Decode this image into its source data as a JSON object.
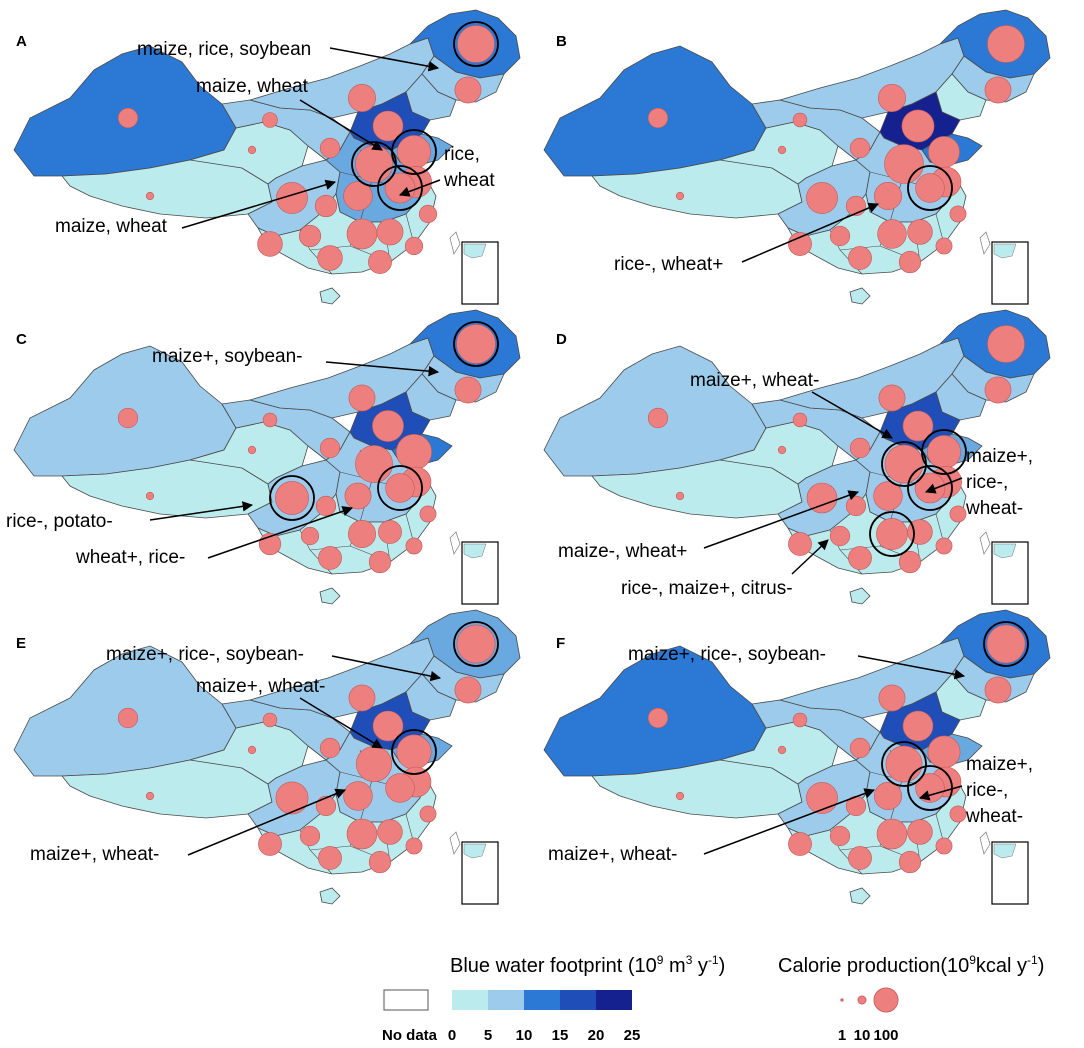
{
  "colors": {
    "footprint_classes": [
      "#bcebee",
      "#9ccbeb",
      "#6aa8e0",
      "#2b78d5",
      "#1f4eb8",
      "#14218f"
    ],
    "province_stroke": "#4a4a4a",
    "bubble_fill": "#ee7f7f",
    "bubble_stroke": "#c05a5a",
    "circle_stroke": "#000000",
    "arrow": "#000000"
  },
  "panels": [
    {
      "letter": "A",
      "annotations": [
        "maize, rice, soybean",
        "maize, wheat",
        "rice,",
        "wheat",
        "maize, wheat"
      ]
    },
    {
      "letter": "B",
      "annotations": [
        "rice-, wheat+"
      ]
    },
    {
      "letter": "C",
      "annotations": [
        "maize+, soybean-",
        "rice-, potato-",
        "wheat+, rice-"
      ]
    },
    {
      "letter": "D",
      "annotations": [
        "maize+, wheat-",
        "maize+,",
        "rice-,",
        "wheat-",
        "maize-, wheat+",
        "rice-, maize+, citrus-"
      ]
    },
    {
      "letter": "E",
      "annotations": [
        "maize+, rice-, soybean-",
        "maize+, wheat-",
        "maize+, wheat-"
      ]
    },
    {
      "letter": "F",
      "annotations": [
        "maize+, rice-, soybean-",
        "maize+,",
        "rice-,",
        "wheat-",
        "maize+, wheat-"
      ]
    }
  ],
  "legend": {
    "footprint": {
      "title_main": "Blue water footprint (10",
      "title_exp1": "9",
      "title_mid": " m",
      "title_exp2": "3",
      "title_mid2": " y",
      "title_exp3": "-1",
      "title_end": ")",
      "no_data_label": "No data",
      "ticks": [
        "0",
        "5",
        "10",
        "15",
        "20",
        "25"
      ]
    },
    "calorie": {
      "title_main": "Calorie production(10",
      "title_exp": "9",
      "title_mid": "kcal y",
      "title_exp2": "-1",
      "title_end": ")",
      "ticks": [
        "1",
        "10",
        "100"
      ],
      "sizes": [
        1,
        10,
        100
      ]
    }
  },
  "maps": [
    {
      "xinjiang": 3,
      "tibet": 0,
      "qinghai": 0,
      "gansu": 1,
      "inner_mongolia": 1,
      "heilongjiang": 3,
      "jilin": 1,
      "liaoning": 1,
      "north_china": 4,
      "shandong": 2,
      "central": 2,
      "sichuan": 1,
      "south": 0,
      "bubbles": [
        {
          "r": "heilongjiang",
          "v": 90
        },
        {
          "r": "jilin",
          "v": 40
        },
        {
          "r": "xinjiang",
          "v": 20
        },
        {
          "r": "inner_mongolia",
          "v": 45
        },
        {
          "r": "north_china",
          "v": 55
        },
        {
          "r": "shandong",
          "v": 70
        },
        {
          "r": "henan",
          "v": 90
        },
        {
          "r": "jiangsu",
          "v": 60
        },
        {
          "r": "anhui",
          "v": 55
        },
        {
          "r": "sichuan",
          "v": 60
        },
        {
          "r": "hunan",
          "v": 55
        },
        {
          "r": "hubei",
          "v": 50
        },
        {
          "r": "jiangxi",
          "v": 40
        },
        {
          "r": "guangxi",
          "v": 35
        },
        {
          "r": "guangdong",
          "v": 30
        },
        {
          "r": "yunnan",
          "v": 35
        },
        {
          "r": "guizhou",
          "v": 25
        },
        {
          "r": "shaanxi",
          "v": 20
        },
        {
          "r": "gansu",
          "v": 10
        },
        {
          "r": "zhejiang",
          "v": 15
        },
        {
          "r": "fujian",
          "v": 15
        },
        {
          "r": "chongqing",
          "v": 25
        },
        {
          "r": "tibet",
          "v": 1
        },
        {
          "r": "qinghai",
          "v": 1
        }
      ],
      "highlights": [
        "heilongjiang",
        "shandong",
        "henan",
        "anhui"
      ]
    },
    {
      "xinjiang": 3,
      "tibet": 0,
      "qinghai": 0,
      "gansu": 1,
      "inner_mongolia": 1,
      "heilongjiang": 3,
      "jilin": 1,
      "liaoning": 0,
      "north_china": 5,
      "shandong": 3,
      "central": 1,
      "sichuan": 1,
      "south": 0,
      "bubbles": [
        {
          "r": "heilongjiang",
          "v": 90
        },
        {
          "r": "jilin",
          "v": 40
        },
        {
          "r": "xinjiang",
          "v": 20
        },
        {
          "r": "inner_mongolia",
          "v": 45
        },
        {
          "r": "north_china",
          "v": 65
        },
        {
          "r": "shandong",
          "v": 60
        },
        {
          "r": "henan",
          "v": 100
        },
        {
          "r": "jiangsu",
          "v": 55
        },
        {
          "r": "anhui",
          "v": 50
        },
        {
          "r": "sichuan",
          "v": 60
        },
        {
          "r": "hunan",
          "v": 50
        },
        {
          "r": "hubei",
          "v": 45
        },
        {
          "r": "jiangxi",
          "v": 35
        },
        {
          "r": "guangxi",
          "v": 30
        },
        {
          "r": "guangdong",
          "v": 25
        },
        {
          "r": "yunnan",
          "v": 30
        },
        {
          "r": "guizhou",
          "v": 20
        },
        {
          "r": "shaanxi",
          "v": 20
        },
        {
          "r": "gansu",
          "v": 8
        },
        {
          "r": "zhejiang",
          "v": 12
        },
        {
          "r": "fujian",
          "v": 12
        },
        {
          "r": "chongqing",
          "v": 20
        },
        {
          "r": "tibet",
          "v": 1
        },
        {
          "r": "qinghai",
          "v": 1
        }
      ],
      "highlights": [
        "anhui"
      ]
    },
    {
      "xinjiang": 1,
      "tibet": 0,
      "qinghai": 0,
      "gansu": 1,
      "inner_mongolia": 1,
      "heilongjiang": 3,
      "jilin": 1,
      "liaoning": 1,
      "north_china": 4,
      "shandong": 3,
      "central": 1,
      "sichuan": 1,
      "south": 0,
      "bubbles": [
        {
          "r": "heilongjiang",
          "v": 100
        },
        {
          "r": "jilin",
          "v": 40
        },
        {
          "r": "xinjiang",
          "v": 20
        },
        {
          "r": "inner_mongolia",
          "v": 40
        },
        {
          "r": "north_china",
          "v": 60
        },
        {
          "r": "shandong",
          "v": 80
        },
        {
          "r": "henan",
          "v": 90
        },
        {
          "r": "jiangsu",
          "v": 55
        },
        {
          "r": "anhui",
          "v": 50
        },
        {
          "r": "sichuan",
          "v": 70
        },
        {
          "r": "hunan",
          "v": 45
        },
        {
          "r": "hubei",
          "v": 40
        },
        {
          "r": "jiangxi",
          "v": 30
        },
        {
          "r": "guangxi",
          "v": 30
        },
        {
          "r": "guangdong",
          "v": 25
        },
        {
          "r": "yunnan",
          "v": 25
        },
        {
          "r": "guizhou",
          "v": 15
        },
        {
          "r": "shaanxi",
          "v": 20
        },
        {
          "r": "gansu",
          "v": 8
        },
        {
          "r": "zhejiang",
          "v": 12
        },
        {
          "r": "fujian",
          "v": 12
        },
        {
          "r": "chongqing",
          "v": 20
        },
        {
          "r": "tibet",
          "v": 1
        },
        {
          "r": "qinghai",
          "v": 1
        }
      ],
      "highlights": [
        "heilongjiang",
        "sichuan",
        "anhui"
      ]
    },
    {
      "xinjiang": 1,
      "tibet": 0,
      "qinghai": 0,
      "gansu": 1,
      "inner_mongolia": 1,
      "heilongjiang": 3,
      "jilin": 1,
      "liaoning": 1,
      "north_china": 4,
      "shandong": 2,
      "central": 1,
      "sichuan": 1,
      "south": 0,
      "bubbles": [
        {
          "r": "heilongjiang",
          "v": 90
        },
        {
          "r": "jilin",
          "v": 40
        },
        {
          "r": "xinjiang",
          "v": 20
        },
        {
          "r": "inner_mongolia",
          "v": 40
        },
        {
          "r": "north_china",
          "v": 55
        },
        {
          "r": "shandong",
          "v": 70
        },
        {
          "r": "henan",
          "v": 95
        },
        {
          "r": "jiangsu",
          "v": 60
        },
        {
          "r": "anhui",
          "v": 55
        },
        {
          "r": "sichuan",
          "v": 55
        },
        {
          "r": "hunan",
          "v": 60
        },
        {
          "r": "hubei",
          "v": 50
        },
        {
          "r": "jiangxi",
          "v": 35
        },
        {
          "r": "guangxi",
          "v": 30
        },
        {
          "r": "guangdong",
          "v": 25
        },
        {
          "r": "yunnan",
          "v": 30
        },
        {
          "r": "guizhou",
          "v": 20
        },
        {
          "r": "shaanxi",
          "v": 20
        },
        {
          "r": "gansu",
          "v": 8
        },
        {
          "r": "zhejiang",
          "v": 12
        },
        {
          "r": "fujian",
          "v": 12
        },
        {
          "r": "chongqing",
          "v": 20
        },
        {
          "r": "tibet",
          "v": 1
        },
        {
          "r": "qinghai",
          "v": 1
        }
      ],
      "highlights": [
        "shandong",
        "henan",
        "anhui",
        "hunan"
      ]
    },
    {
      "xinjiang": 1,
      "tibet": 0,
      "qinghai": 0,
      "gansu": 1,
      "inner_mongolia": 1,
      "heilongjiang": 2,
      "jilin": 1,
      "liaoning": 1,
      "north_china": 4,
      "shandong": 2,
      "central": 1,
      "sichuan": 1,
      "south": 0,
      "bubbles": [
        {
          "r": "heilongjiang",
          "v": 95
        },
        {
          "r": "jilin",
          "v": 40
        },
        {
          "r": "xinjiang",
          "v": 20
        },
        {
          "r": "inner_mongolia",
          "v": 40
        },
        {
          "r": "north_china",
          "v": 55
        },
        {
          "r": "shandong",
          "v": 75
        },
        {
          "r": "henan",
          "v": 80
        },
        {
          "r": "jiangsu",
          "v": 55
        },
        {
          "r": "anhui",
          "v": 50
        },
        {
          "r": "sichuan",
          "v": 65
        },
        {
          "r": "hunan",
          "v": 55
        },
        {
          "r": "hubei",
          "v": 50
        },
        {
          "r": "jiangxi",
          "v": 35
        },
        {
          "r": "guangxi",
          "v": 30
        },
        {
          "r": "guangdong",
          "v": 25
        },
        {
          "r": "yunnan",
          "v": 30
        },
        {
          "r": "guizhou",
          "v": 20
        },
        {
          "r": "shaanxi",
          "v": 20
        },
        {
          "r": "gansu",
          "v": 8
        },
        {
          "r": "zhejiang",
          "v": 12
        },
        {
          "r": "fujian",
          "v": 12
        },
        {
          "r": "chongqing",
          "v": 20
        },
        {
          "r": "tibet",
          "v": 1
        },
        {
          "r": "qinghai",
          "v": 1
        }
      ],
      "highlights": [
        "heilongjiang",
        "shandong"
      ]
    },
    {
      "xinjiang": 3,
      "tibet": 0,
      "qinghai": 0,
      "gansu": 1,
      "inner_mongolia": 1,
      "heilongjiang": 3,
      "jilin": 1,
      "liaoning": 0,
      "north_china": 4,
      "shandong": 2,
      "central": 1,
      "sichuan": 1,
      "south": 0,
      "bubbles": [
        {
          "r": "heilongjiang",
          "v": 95
        },
        {
          "r": "jilin",
          "v": 40
        },
        {
          "r": "xinjiang",
          "v": 20
        },
        {
          "r": "inner_mongolia",
          "v": 40
        },
        {
          "r": "north_china",
          "v": 55
        },
        {
          "r": "shandong",
          "v": 65
        },
        {
          "r": "henan",
          "v": 85
        },
        {
          "r": "jiangsu",
          "v": 55
        },
        {
          "r": "anhui",
          "v": 50
        },
        {
          "r": "sichuan",
          "v": 60
        },
        {
          "r": "hunan",
          "v": 55
        },
        {
          "r": "hubei",
          "v": 45
        },
        {
          "r": "jiangxi",
          "v": 35
        },
        {
          "r": "guangxi",
          "v": 30
        },
        {
          "r": "guangdong",
          "v": 25
        },
        {
          "r": "yunnan",
          "v": 30
        },
        {
          "r": "guizhou",
          "v": 20
        },
        {
          "r": "shaanxi",
          "v": 20
        },
        {
          "r": "gansu",
          "v": 8
        },
        {
          "r": "zhejiang",
          "v": 12
        },
        {
          "r": "fujian",
          "v": 12
        },
        {
          "r": "chongqing",
          "v": 20
        },
        {
          "r": "tibet",
          "v": 1
        },
        {
          "r": "qinghai",
          "v": 1
        }
      ],
      "highlights": [
        "heilongjiang",
        "henan",
        "anhui"
      ]
    }
  ]
}
